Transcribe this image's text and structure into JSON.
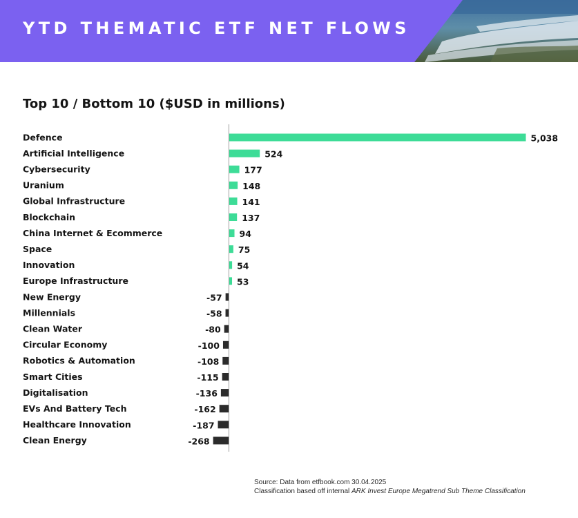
{
  "header": {
    "title": "YTD THEMATIC ETF NET FLOWS",
    "bg_color": "#7b61f0"
  },
  "chart_data": {
    "type": "bar",
    "orientation": "horizontal",
    "title": "Top 10 / Bottom 10 ($USD in millions)",
    "xlabel": "",
    "ylabel": "",
    "grid": false,
    "legend": "none",
    "positive_color": "#3ddc97",
    "negative_color": "#2b2b2b",
    "categories": [
      "Defence",
      "Artificial Intelligence",
      "Cybersecurity",
      "Uranium",
      "Global Infrastructure",
      "Blockchain",
      "China Internet & Ecommerce",
      "Space",
      "Innovation",
      "Europe Infrastructure",
      "New Energy",
      "Millennials",
      "Clean Water",
      "Circular Economy",
      "Robotics & Automation",
      "Smart Cities",
      "Digitalisation",
      "EVs And Battery Tech",
      "Healthcare Innovation",
      "Clean Energy"
    ],
    "values": [
      5038,
      524,
      177,
      148,
      141,
      137,
      94,
      75,
      54,
      53,
      -57,
      -58,
      -80,
      -100,
      -108,
      -115,
      -136,
      -162,
      -187,
      -268
    ],
    "value_labels": [
      "5,038",
      "524",
      "177",
      "148",
      "141",
      "137",
      "94",
      "75",
      "54",
      "53",
      "-57",
      "-58",
      "-80",
      "-100",
      "-108",
      "-115",
      "-136",
      "-162",
      "-187",
      "-268"
    ]
  },
  "source": {
    "line1": "Source: Data from etfbook.com 30.04.2025",
    "line2_prefix": "Classification based off internal ",
    "line2_italic": "ARK Invest Europe Megatrend Sub Theme Classification"
  }
}
